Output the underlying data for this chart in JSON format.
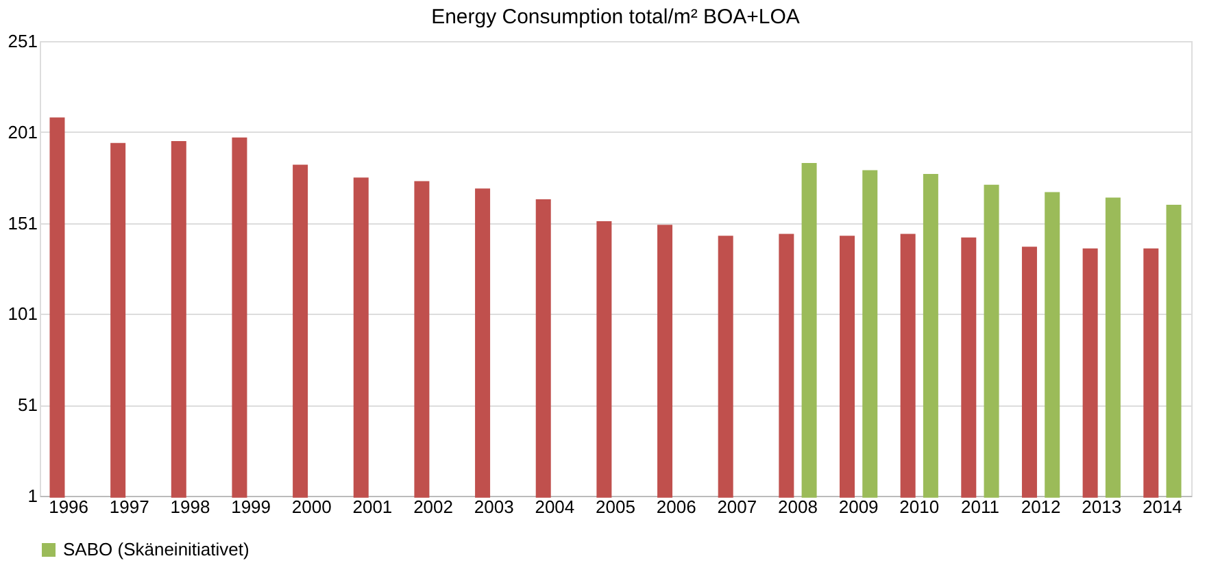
{
  "chart_data": {
    "type": "bar",
    "title": "Energy Consumption total/m² BOA+LOA",
    "categories": [
      "1996",
      "1997",
      "1998",
      "1999",
      "2000",
      "2001",
      "2002",
      "2003",
      "2004",
      "2005",
      "2006",
      "2007",
      "2008",
      "2009",
      "2010",
      "2011",
      "2012",
      "2013",
      "2014"
    ],
    "series": [
      {
        "color": "#c0504d",
        "values": [
          209,
          195,
          196,
          198,
          183,
          176,
          174,
          170,
          164,
          152,
          150,
          144,
          145,
          144,
          145,
          143,
          138,
          137,
          137
        ]
      },
      {
        "name": "SABO (Skäneinitiativet)",
        "color": "#9bbb59",
        "values": [
          null,
          null,
          null,
          null,
          null,
          null,
          null,
          null,
          null,
          null,
          null,
          null,
          184,
          180,
          178,
          172,
          168,
          165,
          161
        ]
      }
    ],
    "ylim": [
      1,
      251
    ],
    "yticks": [
      1,
      51,
      101,
      151,
      201,
      251
    ],
    "grid": "y",
    "legend": "bottom"
  }
}
